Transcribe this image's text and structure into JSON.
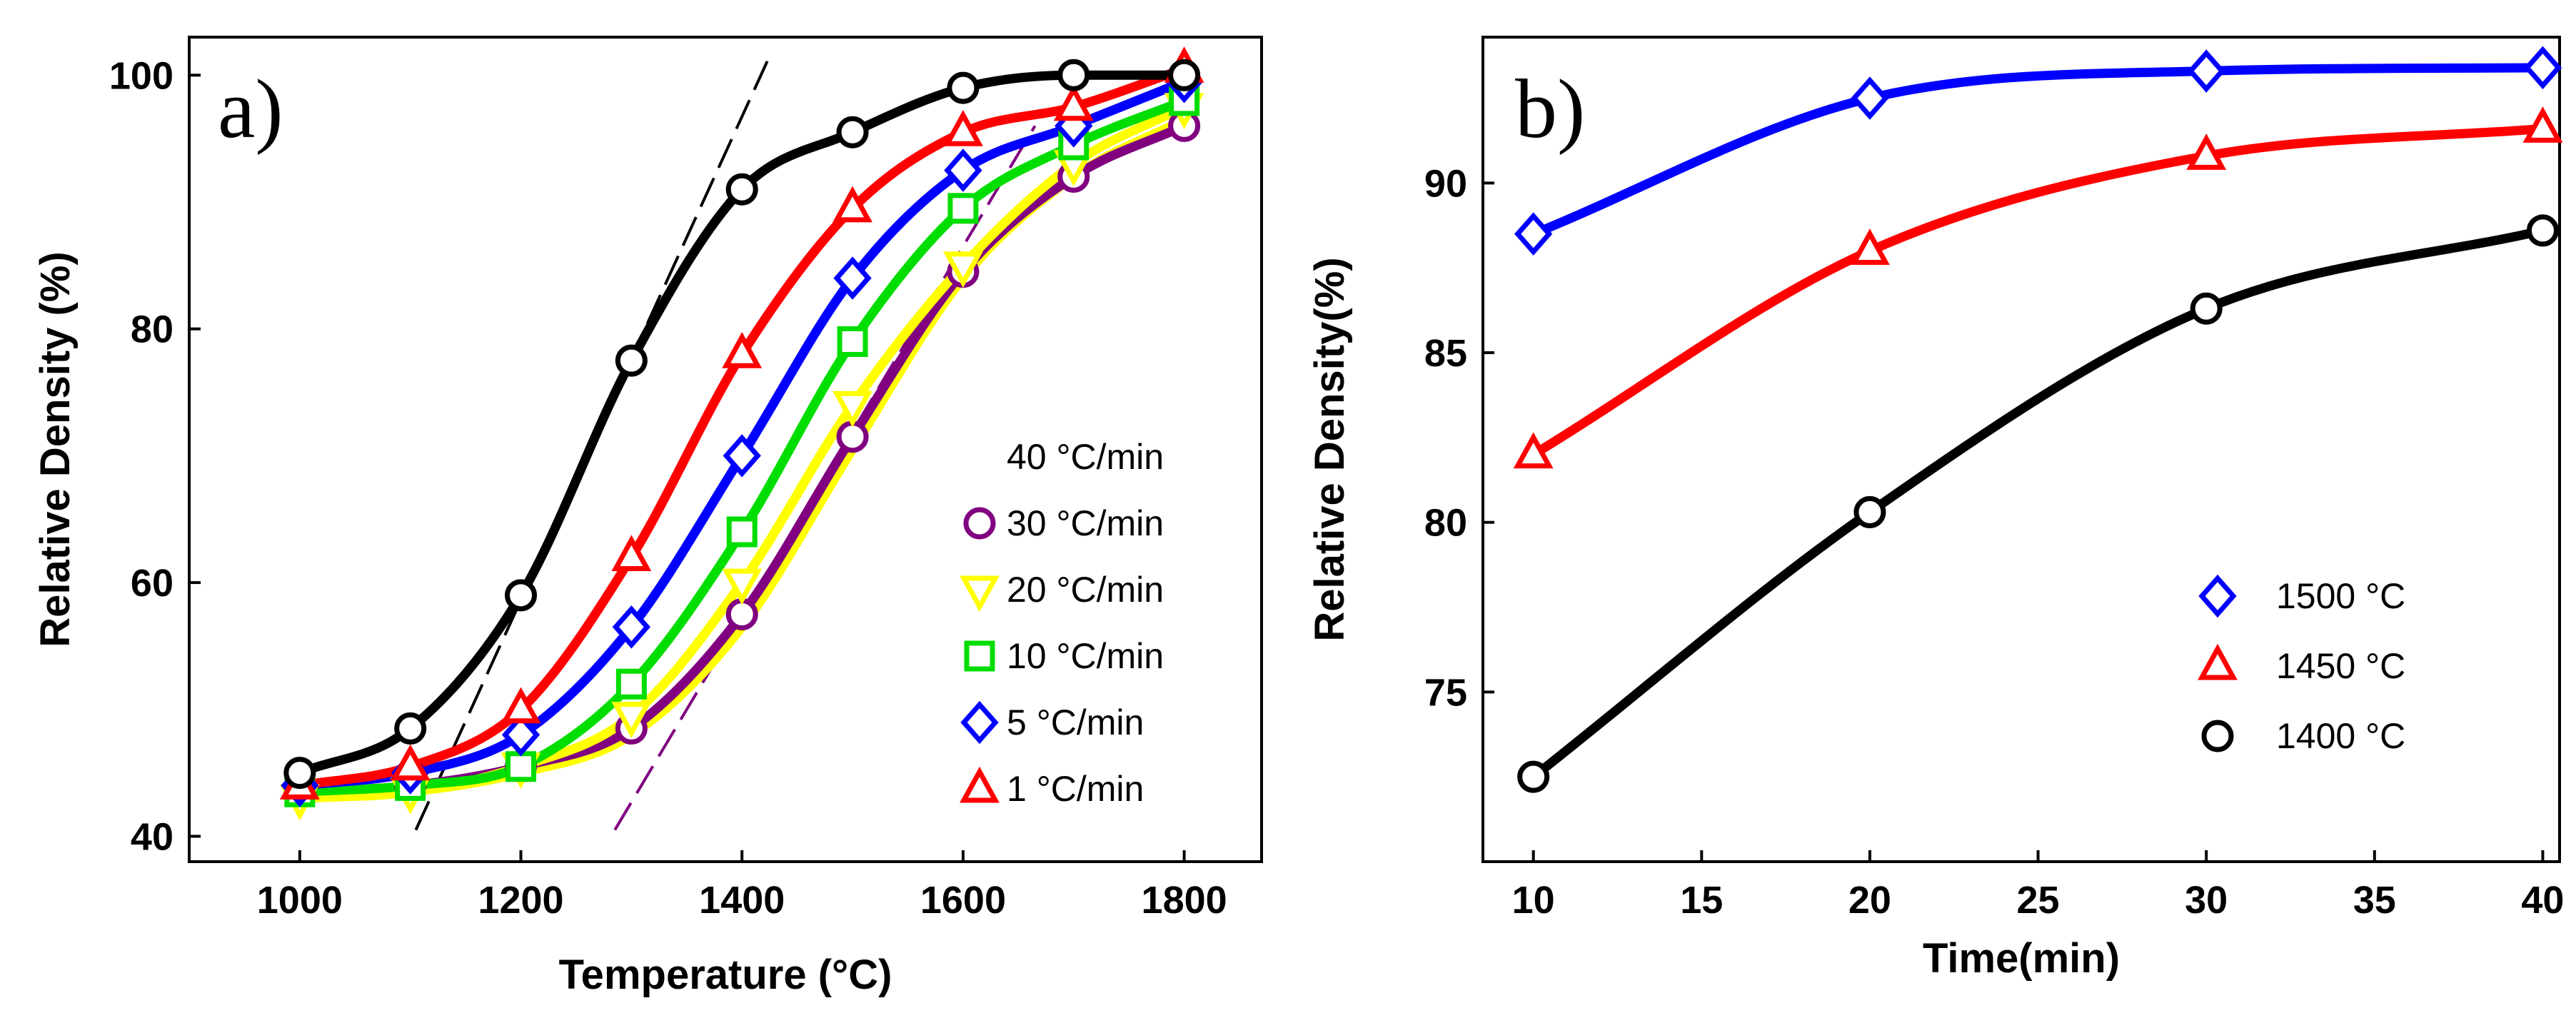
{
  "chart_data": [
    {
      "panel_label": "a)",
      "type": "line",
      "xlabel": "Temperature (°C)",
      "ylabel": "Relative Density (%)",
      "xlim": [
        900,
        1870
      ],
      "ylim": [
        38,
        103
      ],
      "xticks": [
        1000,
        1200,
        1400,
        1600,
        1800
      ],
      "yticks": [
        40,
        60,
        80,
        100
      ],
      "x": [
        1000,
        1100,
        1200,
        1300,
        1400,
        1500,
        1600,
        1700,
        1800
      ],
      "legend_position": "right-center",
      "series": [
        {
          "name": "40 °C/min",
          "color": "#ffff00",
          "marker": "none",
          "values": [
            43,
            43.5,
            45,
            48,
            56.5,
            70.5,
            84,
            92,
            96.5
          ]
        },
        {
          "name": "30 °C/min",
          "color": "#800080",
          "marker": "circle",
          "values": [
            43.5,
            44,
            45.5,
            48.5,
            57.5,
            71.5,
            84.5,
            92,
            96
          ]
        },
        {
          "name": "20 °C/min",
          "color": "#ffff00",
          "marker": "triangle-down",
          "values": [
            43,
            43.5,
            45.5,
            49.5,
            60,
            74,
            85,
            93,
            97.5
          ]
        },
        {
          "name": "10 °C/min",
          "color": "#00dd00",
          "marker": "square",
          "values": [
            43.5,
            44,
            45.5,
            52,
            64,
            79,
            89.5,
            94.5,
            98
          ]
        },
        {
          "name": "5 °C/min",
          "color": "#0000ff",
          "marker": "diamond",
          "values": [
            44,
            45,
            48,
            56.5,
            70,
            84,
            92.5,
            96,
            99.5
          ]
        },
        {
          "name": "1 °C/min",
          "color": "#ff0000",
          "marker": "triangle-up",
          "values": [
            44,
            45.5,
            50,
            62,
            78,
            89.5,
            95.5,
            97.5,
            100.5
          ]
        },
        {
          "name": "",
          "color": "#000000",
          "marker": "circle",
          "values": [
            45,
            48.5,
            59,
            77.5,
            91,
            95.5,
            99,
            100,
            100
          ]
        }
      ],
      "fit_lines": [
        {
          "color": "#000000",
          "from": [
            1105,
            40.5
          ],
          "to": [
            1425,
            101.5
          ]
        },
        {
          "color": "#800080",
          "from": [
            1285,
            40.5
          ],
          "to": [
            1665,
            96
          ]
        }
      ]
    },
    {
      "panel_label": "b)",
      "type": "line",
      "xlabel": "Time(min)",
      "ylabel": "Relative Density(%)",
      "xlim": [
        8.5,
        40.5
      ],
      "ylim": [
        70,
        94.3
      ],
      "xticks": [
        10,
        15,
        20,
        25,
        30,
        35,
        40
      ],
      "yticks": [
        75,
        80,
        85,
        90
      ],
      "x": [
        10,
        20,
        30,
        40
      ],
      "legend_position": "right-center",
      "series": [
        {
          "name": "1500 °C",
          "color": "#0000ff",
          "marker": "diamond",
          "values": [
            88.5,
            92.5,
            93.3,
            93.4
          ]
        },
        {
          "name": "1450 °C",
          "color": "#ff0000",
          "marker": "triangle-up",
          "values": [
            82,
            88,
            90.8,
            91.6
          ]
        },
        {
          "name": "1400 °C",
          "color": "#000000",
          "marker": "circle",
          "values": [
            72.5,
            80.3,
            86.3,
            88.6
          ]
        }
      ]
    }
  ]
}
